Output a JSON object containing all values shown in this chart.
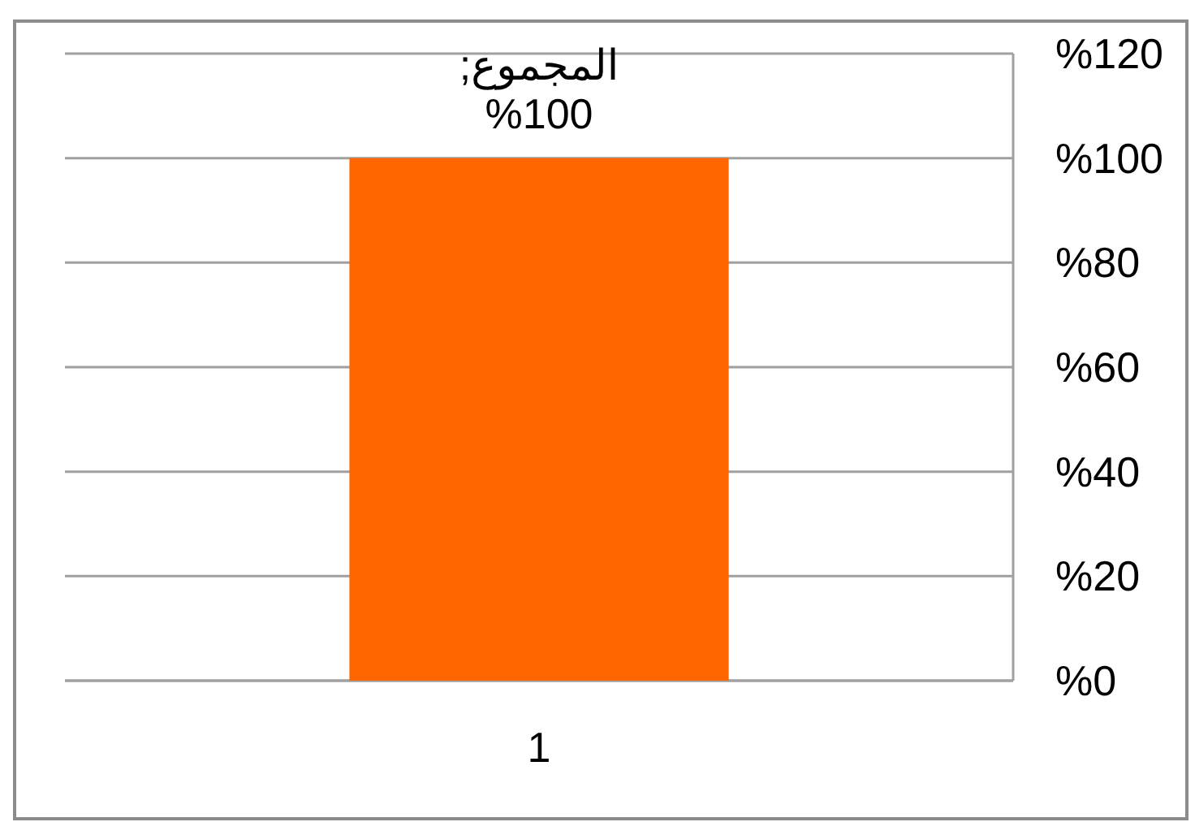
{
  "chart_data": {
    "type": "bar",
    "categories": [
      "1"
    ],
    "series": [
      {
        "color": "#ff6600",
        "values": [
          100
        ],
        "value_labels": [
          "المجموع; %100"
        ]
      }
    ],
    "ylim": [
      0,
      120
    ],
    "yticks": [
      {
        "value": 0,
        "label": "%0"
      },
      {
        "value": 20,
        "label": "%20"
      },
      {
        "value": 40,
        "label": "%40"
      },
      {
        "value": 60,
        "label": "%60"
      },
      {
        "value": 80,
        "label": "%80"
      },
      {
        "value": 100,
        "label": "%100"
      },
      {
        "value": 120,
        "label": "%120"
      }
    ],
    "grid": "y"
  }
}
